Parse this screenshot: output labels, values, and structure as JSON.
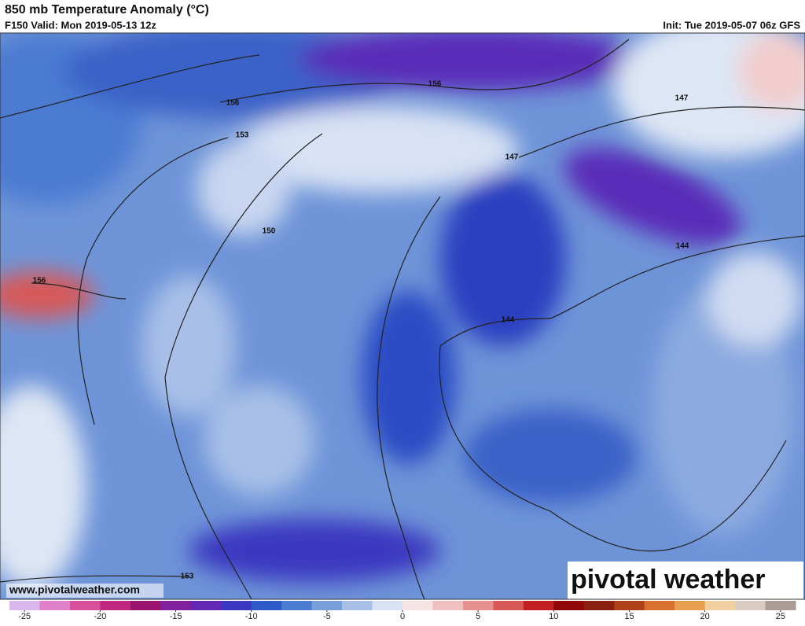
{
  "header": {
    "title": "850 mb Temperature Anomaly (°C)",
    "valid": "F150 Valid: Mon 2019-05-13 12z",
    "init": "Init: Tue 2019-05-07 06z GFS"
  },
  "map": {
    "contour_labels": [
      156,
      156,
      153,
      147,
      147,
      150,
      144,
      144,
      156,
      153
    ],
    "website": "www.pivotalweather.com",
    "brand": "pivotal weather",
    "colorbar": {
      "lim": [
        -26,
        26
      ],
      "ticks": [
        -25,
        -20,
        -15,
        -10,
        -5,
        0,
        5,
        10,
        15,
        20,
        25
      ],
      "colors": [
        "#dab8ec",
        "#e080c8",
        "#d8509c",
        "#c02880",
        "#9a1470",
        "#80209c",
        "#6228b4",
        "#3a38c0",
        "#2e5ac8",
        "#4c7cd2",
        "#7aa0dc",
        "#a8c0e8",
        "#d8e2f4",
        "#f6e4e4",
        "#f0c0c0",
        "#e89090",
        "#d85858",
        "#c02020",
        "#900808",
        "#8a2010",
        "#b04018",
        "#d87030",
        "#e8a050",
        "#f0d0a0",
        "#d8ccc0",
        "#a89c94"
      ]
    }
  }
}
